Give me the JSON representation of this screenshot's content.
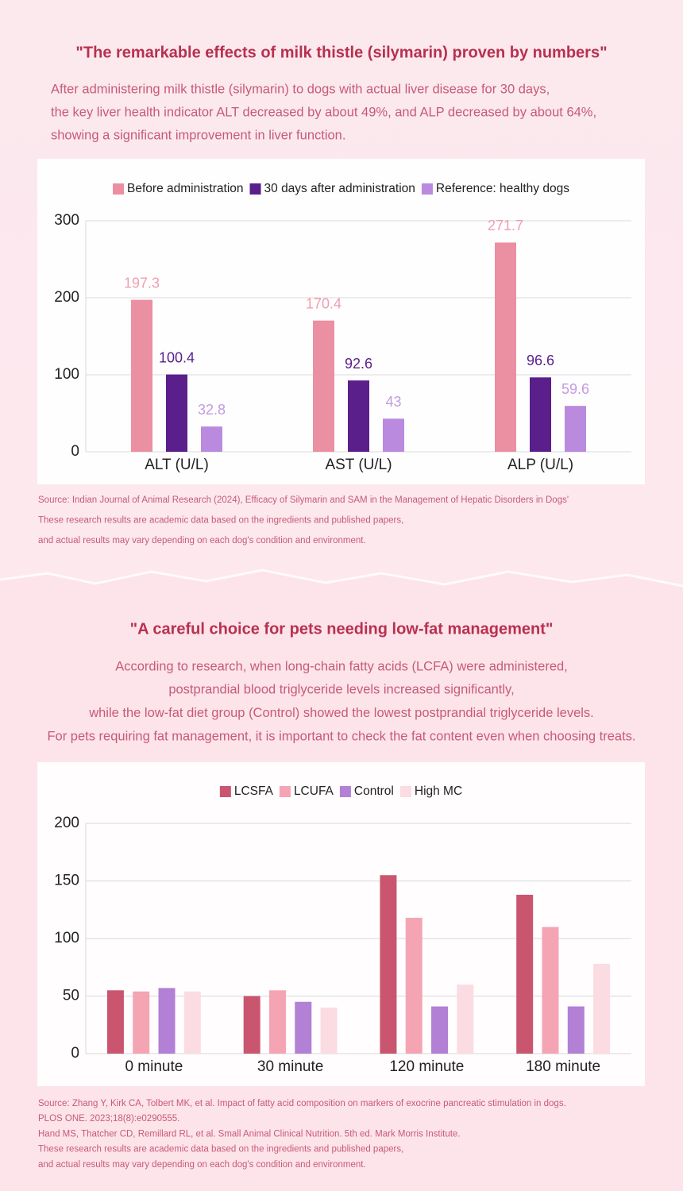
{
  "chart_data": [
    {
      "type": "bar",
      "title": "\"The remarkable effects of milk thistle (silymarin) proven by numbers\"",
      "subtitle": [
        "After administering milk thistle (silymarin) to dogs with actual liver disease for 30 days,",
        "the key liver health indicator ALT decreased by about 49%, and ALP decreased by about 64%,",
        "showing a significant improvement in liver function."
      ],
      "categories": [
        "ALT (U/L)",
        "AST (U/L)",
        "ALP (U/L)"
      ],
      "series": [
        {
          "name": "Before administration",
          "color": "#eb8fa2",
          "values": [
            197.3,
            170.4,
            271.7
          ]
        },
        {
          "name": "30 days after administration",
          "color": "#5a1f8a",
          "values": [
            100.4,
            92.6,
            96.6
          ]
        },
        {
          "name": "Reference: healthy dogs",
          "color": "#b98ade",
          "values": [
            32.8,
            43,
            59.6
          ]
        }
      ],
      "ylim": [
        0,
        300
      ],
      "yticks": [
        0,
        100,
        200,
        300
      ],
      "grid": true,
      "data_labels": true,
      "legend": "top",
      "notes": [
        "Source: Indian Journal of Animal Research (2024), Efficacy of Silymarin and SAM in the Management of Hepatic Disorders in Dogs'",
        "These research results are academic data based on the ingredients and published papers,",
        "and actual results may vary depending on each dog's condition and environment."
      ]
    },
    {
      "type": "bar",
      "title": "\"A careful choice for pets needing low-fat management\"",
      "subtitle": [
        "According to research, when long-chain fatty acids (LCFA) were administered,",
        "postprandial blood triglyceride levels increased significantly,",
        "while the low-fat diet group (Control) showed the lowest postprandial triglyceride levels.",
        "For pets requiring fat management, it is important to check the fat content even when choosing treats."
      ],
      "categories": [
        "0 minute",
        "30 minute",
        "120 minute",
        "180 minute"
      ],
      "series": [
        {
          "name": "LCSFA",
          "color": "#c9566e",
          "values": [
            55,
            50,
            155,
            138
          ]
        },
        {
          "name": "LCUFA",
          "color": "#f5a4b4",
          "values": [
            54,
            55,
            118,
            110
          ]
        },
        {
          "name": "Control",
          "color": "#b280d4",
          "values": [
            57,
            45,
            41,
            41
          ]
        },
        {
          "name": "High MC",
          "color": "#fbdce3",
          "values": [
            54,
            40,
            60,
            78
          ]
        }
      ],
      "ylim": [
        0,
        200
      ],
      "yticks": [
        0,
        50,
        100,
        150,
        200
      ],
      "grid": true,
      "data_labels": false,
      "legend": "top",
      "notes": [
        "Source: Zhang Y, Kirk CA, Tolbert MK, et al. Impact of fatty acid composition on markers of exocrine pancreatic stimulation in dogs.",
        "PLOS ONE. 2023;18(8):e0290555.",
        "Hand MS, Thatcher CD, Remillard RL, et al. Small Animal Clinical Nutrition. 5th ed. Mark Morris Institute.",
        "These research results are academic data based on the ingredients and published papers,",
        "and actual results may vary depending on each dog's condition and environment."
      ]
    }
  ]
}
